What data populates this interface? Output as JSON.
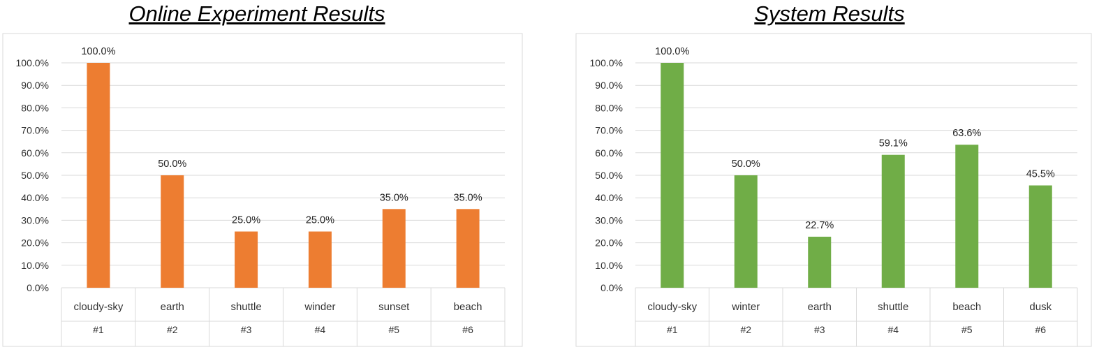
{
  "chart_data": [
    {
      "type": "bar",
      "title": "Online Experiment Results",
      "categories": [
        "cloudy-sky",
        "earth",
        "shuttle",
        "winder",
        "sunset",
        "beach"
      ],
      "ranks": [
        "#1",
        "#2",
        "#3",
        "#4",
        "#5",
        "#6"
      ],
      "values": [
        100.0,
        50.0,
        25.0,
        25.0,
        35.0,
        35.0
      ],
      "value_labels": [
        "100.0%",
        "50.0%",
        "25.0%",
        "25.0%",
        "35.0%",
        "35.0%"
      ],
      "y_ticks": [
        "0.0%",
        "10.0%",
        "20.0%",
        "30.0%",
        "40.0%",
        "50.0%",
        "60.0%",
        "70.0%",
        "80.0%",
        "90.0%",
        "100.0%"
      ],
      "ylim": [
        0,
        100
      ],
      "grid": true,
      "color": "#ED7D31"
    },
    {
      "type": "bar",
      "title": "System Results",
      "categories": [
        "cloudy-sky",
        "winter",
        "earth",
        "shuttle",
        "beach",
        "dusk"
      ],
      "ranks": [
        "#1",
        "#2",
        "#3",
        "#4",
        "#5",
        "#6"
      ],
      "values": [
        100.0,
        50.0,
        22.7,
        59.1,
        63.6,
        45.5
      ],
      "value_labels": [
        "100.0%",
        "50.0%",
        "22.7%",
        "59.1%",
        "63.6%",
        "45.5%"
      ],
      "y_ticks": [
        "0.0%",
        "10.0%",
        "20.0%",
        "30.0%",
        "40.0%",
        "50.0%",
        "60.0%",
        "70.0%",
        "80.0%",
        "90.0%",
        "100.0%"
      ],
      "ylim": [
        0,
        100
      ],
      "grid": true,
      "color": "#70AD47"
    }
  ]
}
